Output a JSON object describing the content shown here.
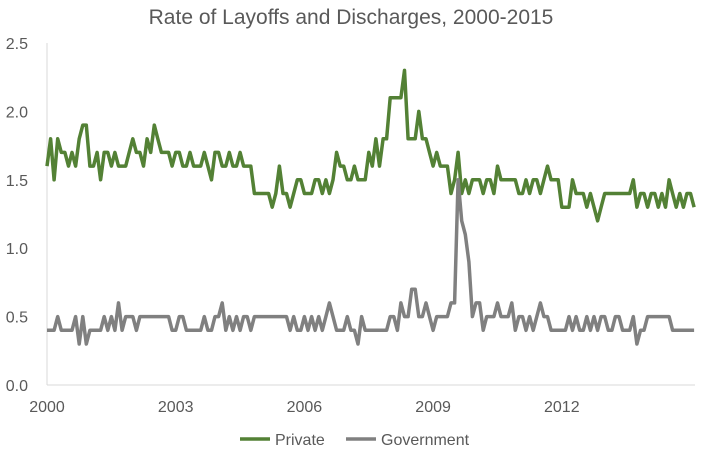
{
  "chart_data": {
    "type": "line",
    "title": "Rate of Layoffs and Discharges, 2000-2015",
    "xlabel": "",
    "ylabel": "",
    "ylim": [
      0,
      2.5
    ],
    "yticks": [
      "0.0",
      "0.5",
      "1.0",
      "1.5",
      "2.0",
      "2.5"
    ],
    "xticks": [
      "2000",
      "2003",
      "2006",
      "2009",
      "2012"
    ],
    "x_start": "2000-01",
    "x_frequency": "monthly",
    "grid": false,
    "legend_position": "bottom",
    "series": [
      {
        "name": "Private",
        "color": "#538135",
        "values": [
          1.6,
          1.8,
          1.5,
          1.8,
          1.7,
          1.7,
          1.6,
          1.7,
          1.6,
          1.8,
          1.9,
          1.9,
          1.6,
          1.6,
          1.7,
          1.5,
          1.7,
          1.7,
          1.6,
          1.7,
          1.6,
          1.6,
          1.6,
          1.7,
          1.8,
          1.7,
          1.7,
          1.6,
          1.8,
          1.7,
          1.9,
          1.8,
          1.7,
          1.7,
          1.7,
          1.6,
          1.7,
          1.7,
          1.6,
          1.6,
          1.7,
          1.6,
          1.6,
          1.6,
          1.7,
          1.6,
          1.5,
          1.7,
          1.7,
          1.6,
          1.6,
          1.7,
          1.6,
          1.6,
          1.7,
          1.6,
          1.6,
          1.6,
          1.4,
          1.4,
          1.4,
          1.4,
          1.4,
          1.3,
          1.4,
          1.6,
          1.4,
          1.4,
          1.3,
          1.4,
          1.5,
          1.5,
          1.4,
          1.4,
          1.4,
          1.5,
          1.5,
          1.4,
          1.5,
          1.4,
          1.5,
          1.7,
          1.6,
          1.6,
          1.5,
          1.5,
          1.6,
          1.5,
          1.5,
          1.5,
          1.7,
          1.6,
          1.8,
          1.6,
          1.8,
          1.8,
          2.1,
          2.1,
          2.1,
          2.1,
          2.3,
          1.8,
          1.8,
          1.8,
          2.0,
          1.8,
          1.8,
          1.7,
          1.6,
          1.7,
          1.6,
          1.6,
          1.6,
          1.4,
          1.5,
          1.7,
          1.4,
          1.5,
          1.4,
          1.5,
          1.5,
          1.5,
          1.4,
          1.5,
          1.5,
          1.4,
          1.6,
          1.5,
          1.5,
          1.5,
          1.5,
          1.5,
          1.4,
          1.4,
          1.5,
          1.4,
          1.5,
          1.5,
          1.4,
          1.5,
          1.6,
          1.5,
          1.5,
          1.5,
          1.3,
          1.3,
          1.3,
          1.5,
          1.4,
          1.4,
          1.4,
          1.3,
          1.4,
          1.3,
          1.2,
          1.3,
          1.4,
          1.4,
          1.4,
          1.4,
          1.4,
          1.4,
          1.4,
          1.4,
          1.5,
          1.3,
          1.4,
          1.4,
          1.3,
          1.4,
          1.4,
          1.3,
          1.4,
          1.3,
          1.5,
          1.4,
          1.3,
          1.4,
          1.3,
          1.4,
          1.4,
          1.3
        ]
      },
      {
        "name": "Government",
        "color": "#808080",
        "values": [
          0.4,
          0.4,
          0.4,
          0.5,
          0.4,
          0.4,
          0.4,
          0.4,
          0.5,
          0.3,
          0.5,
          0.3,
          0.4,
          0.4,
          0.4,
          0.4,
          0.5,
          0.4,
          0.5,
          0.4,
          0.6,
          0.4,
          0.5,
          0.5,
          0.5,
          0.4,
          0.5,
          0.5,
          0.5,
          0.5,
          0.5,
          0.5,
          0.5,
          0.5,
          0.5,
          0.4,
          0.4,
          0.5,
          0.5,
          0.4,
          0.4,
          0.4,
          0.4,
          0.4,
          0.5,
          0.4,
          0.4,
          0.5,
          0.5,
          0.6,
          0.4,
          0.5,
          0.4,
          0.5,
          0.4,
          0.5,
          0.5,
          0.4,
          0.5,
          0.5,
          0.5,
          0.5,
          0.5,
          0.5,
          0.5,
          0.5,
          0.5,
          0.5,
          0.4,
          0.5,
          0.4,
          0.4,
          0.5,
          0.4,
          0.5,
          0.4,
          0.5,
          0.4,
          0.5,
          0.6,
          0.5,
          0.4,
          0.4,
          0.4,
          0.5,
          0.4,
          0.4,
          0.3,
          0.5,
          0.4,
          0.4,
          0.4,
          0.4,
          0.4,
          0.4,
          0.4,
          0.5,
          0.5,
          0.4,
          0.6,
          0.5,
          0.5,
          0.7,
          0.7,
          0.5,
          0.5,
          0.6,
          0.5,
          0.4,
          0.5,
          0.5,
          0.5,
          0.5,
          0.6,
          0.6,
          1.5,
          1.2,
          1.1,
          0.9,
          0.5,
          0.6,
          0.6,
          0.4,
          0.5,
          0.5,
          0.5,
          0.6,
          0.5,
          0.5,
          0.5,
          0.6,
          0.4,
          0.5,
          0.5,
          0.4,
          0.5,
          0.4,
          0.5,
          0.6,
          0.5,
          0.5,
          0.4,
          0.4,
          0.4,
          0.4,
          0.4,
          0.5,
          0.4,
          0.5,
          0.4,
          0.4,
          0.5,
          0.4,
          0.5,
          0.4,
          0.5,
          0.5,
          0.4,
          0.4,
          0.5,
          0.5,
          0.4,
          0.4,
          0.4,
          0.5,
          0.3,
          0.4,
          0.4,
          0.5,
          0.5,
          0.5,
          0.5,
          0.5,
          0.5,
          0.5,
          0.4,
          0.4,
          0.4,
          0.4,
          0.4,
          0.4,
          0.4
        ]
      }
    ]
  }
}
